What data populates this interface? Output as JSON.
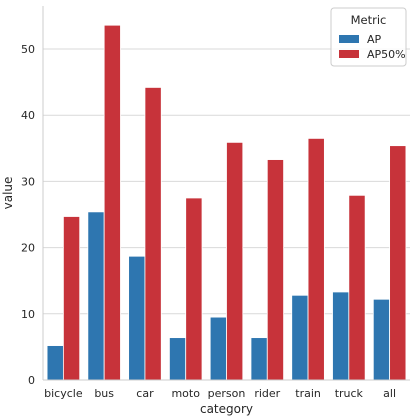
{
  "chart_data": {
    "type": "bar",
    "xlabel": "category",
    "ylabel": "value",
    "categories": [
      "bicycle",
      "bus",
      "car",
      "moto",
      "person",
      "rider",
      "train",
      "truck",
      "all"
    ],
    "series": [
      {
        "name": "AP",
        "color": "#2e76b0",
        "values": [
          5.2,
          25.4,
          18.7,
          6.4,
          9.5,
          6.4,
          12.8,
          13.3,
          12.2
        ]
      },
      {
        "name": "AP50%",
        "color": "#c7333a",
        "values": [
          24.7,
          53.6,
          44.2,
          27.5,
          35.9,
          33.3,
          36.5,
          27.9,
          35.4
        ]
      }
    ],
    "ylim": [
      0,
      56.5
    ],
    "yticks": [
      0,
      10,
      20,
      30,
      40,
      50
    ],
    "grid": "horizontal",
    "legend": {
      "title": "Metric",
      "placement": "top-right"
    }
  }
}
